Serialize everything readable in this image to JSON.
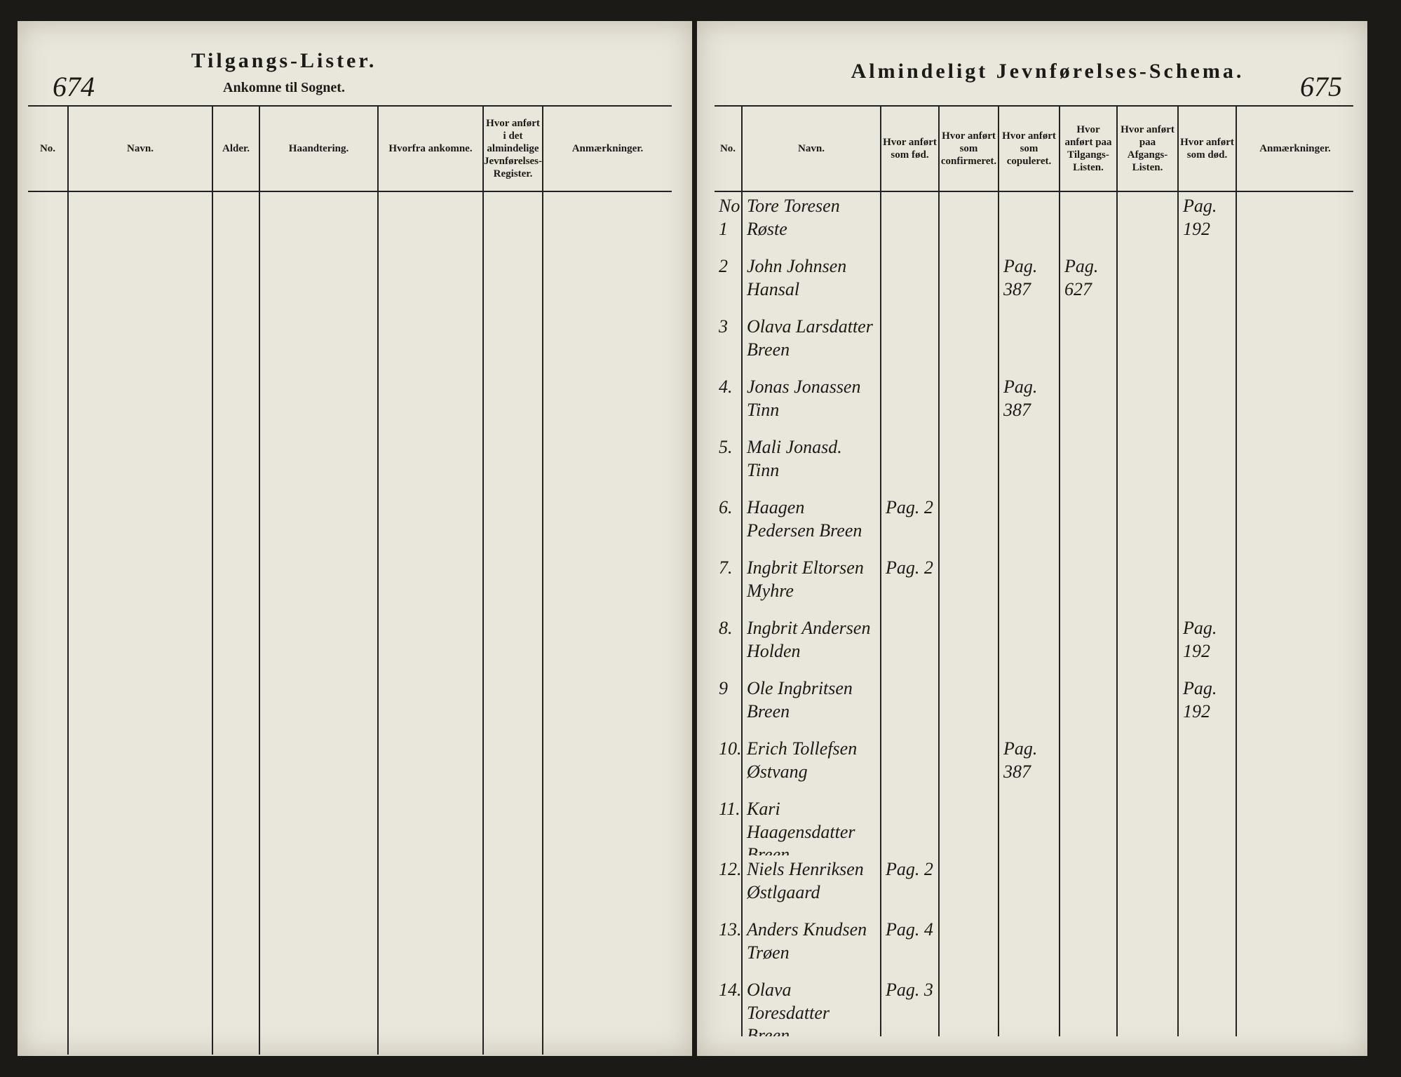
{
  "left_page": {
    "page_number": "674",
    "title": "Tilgangs-Lister.",
    "subtitle": "Ankomne til Sognet.",
    "columns": [
      "No.",
      "Navn.",
      "Alder.",
      "Haandtering.",
      "Hvorfra ankomne.",
      "Hvor anført i det almindelige Jevnførelses-Register.",
      "Anmærkninger."
    ]
  },
  "right_page": {
    "page_number": "675",
    "title": "Almindeligt Jevnførelses-Schema.",
    "columns": [
      "No.",
      "Navn.",
      "Hvor anført som fød.",
      "Hvor anført som confirmeret.",
      "Hvor anført som copuleret.",
      "Hvor anført paa Tilgangs-Listen.",
      "Hvor anført paa Afgangs-Listen.",
      "Hvor anført som død.",
      "Anmærkninger."
    ],
    "rows": [
      {
        "no": "No 1",
        "name": "Tore Toresen Røste",
        "death": "Pag. 192"
      },
      {
        "no": "2",
        "name": "John Johnsen Hansal",
        "married": "Pag. 387",
        "arrival": "Pag. 627"
      },
      {
        "no": "3",
        "name": "Olava Larsdatter Breen"
      },
      {
        "no": "4.",
        "name": "Jonas Jonassen Tinn",
        "married": "Pag. 387"
      },
      {
        "no": "5.",
        "name": "Mali Jonasd. Tinn"
      },
      {
        "no": "6.",
        "name": "Haagen Pedersen Breen",
        "born": "Pag. 2"
      },
      {
        "no": "7.",
        "name": "Ingbrit Eltorsen Myhre",
        "born": "Pag. 2"
      },
      {
        "no": "8.",
        "name": "Ingbrit Andersen Holden",
        "death": "Pag. 192"
      },
      {
        "no": "9",
        "name": "Ole Ingbritsen Breen",
        "death": "Pag. 192"
      },
      {
        "no": "10.",
        "name": "Erich Tollefsen Østvang",
        "married": "Pag. 387"
      },
      {
        "no": "11.",
        "name": "Kari Haagensdatter Breen"
      },
      {
        "no": "12.",
        "name": "Niels Henriksen Østlgaard",
        "born": "Pag. 2"
      },
      {
        "no": "13.",
        "name": "Anders Knudsen Trøen",
        "born": "Pag. 4"
      },
      {
        "no": "14.",
        "name": "Olava Toresdatter Breen",
        "born": "Pag. 3"
      }
    ]
  }
}
